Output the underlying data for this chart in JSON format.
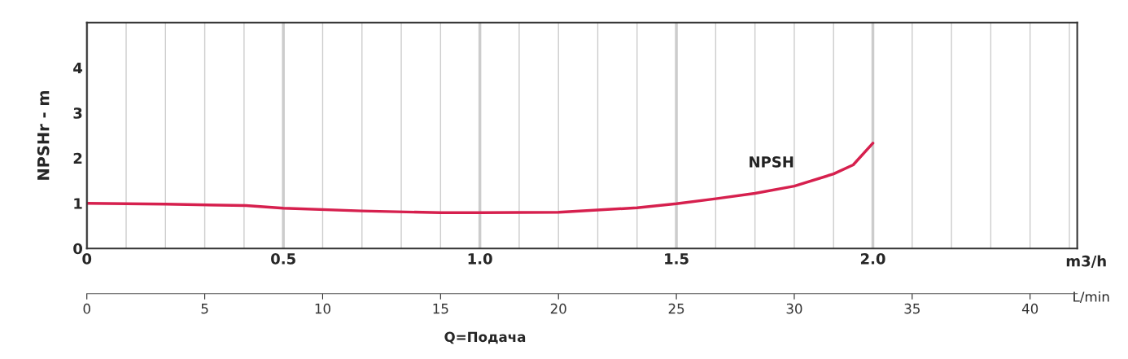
{
  "chart_data": {
    "type": "line",
    "x": [
      0,
      0.2,
      0.405,
      0.5,
      0.7,
      0.9,
      1.0,
      1.2,
      1.4,
      1.5,
      1.6,
      1.7,
      1.8,
      1.9,
      1.95,
      2.0
    ],
    "series": [
      {
        "name": "NPSH",
        "color": "#d6204e",
        "values": [
          1.0,
          0.98,
          0.95,
          0.89,
          0.83,
          0.79,
          0.79,
          0.8,
          0.9,
          0.99,
          1.1,
          1.22,
          1.38,
          1.65,
          1.85,
          2.33
        ]
      }
    ],
    "xlim": [
      0,
      2.52
    ],
    "xticks": [
      0,
      {
        "value": 0.1,
        "label": null
      },
      {
        "value": 0.2,
        "label": null
      },
      {
        "value": 0.3,
        "label": null
      },
      {
        "value": 0.4,
        "label": null
      },
      0.5,
      {
        "value": 0.6,
        "label": null
      },
      {
        "value": 0.7,
        "label": null
      },
      {
        "value": 0.8,
        "label": null
      },
      {
        "value": 0.9,
        "label": null
      },
      {
        "value": 1.0,
        "label": "1.0"
      },
      {
        "value": 1.1,
        "label": null
      },
      {
        "value": 1.2,
        "label": null
      },
      {
        "value": 1.3,
        "label": null
      },
      {
        "value": 1.4,
        "label": null
      },
      1.5,
      {
        "value": 1.6,
        "label": null
      },
      {
        "value": 1.7,
        "label": null
      },
      {
        "value": 1.8,
        "label": null
      },
      {
        "value": 1.9,
        "label": null
      },
      {
        "value": 2.0,
        "label": "2.0"
      },
      {
        "value": 2.1,
        "label": null
      },
      {
        "value": 2.2,
        "label": null
      },
      {
        "value": 2.3,
        "label": null
      },
      {
        "value": 2.4,
        "label": null
      },
      {
        "value": 2.5,
        "label": null
      }
    ],
    "ylim": [
      0,
      5
    ],
    "yticks": [
      0,
      1,
      2,
      3,
      4
    ],
    "x2lim": [
      0,
      42
    ],
    "x2ticks": [
      0,
      5,
      10,
      15,
      20,
      25,
      30,
      35,
      40
    ],
    "xlabel": "m3/h",
    "x2label": "L/min",
    "ylabel": "NPSHr - m",
    "annotations": [
      "Q=Подача"
    ],
    "grid": "x",
    "legend": false,
    "marker": "none",
    "line_style": "solid"
  }
}
